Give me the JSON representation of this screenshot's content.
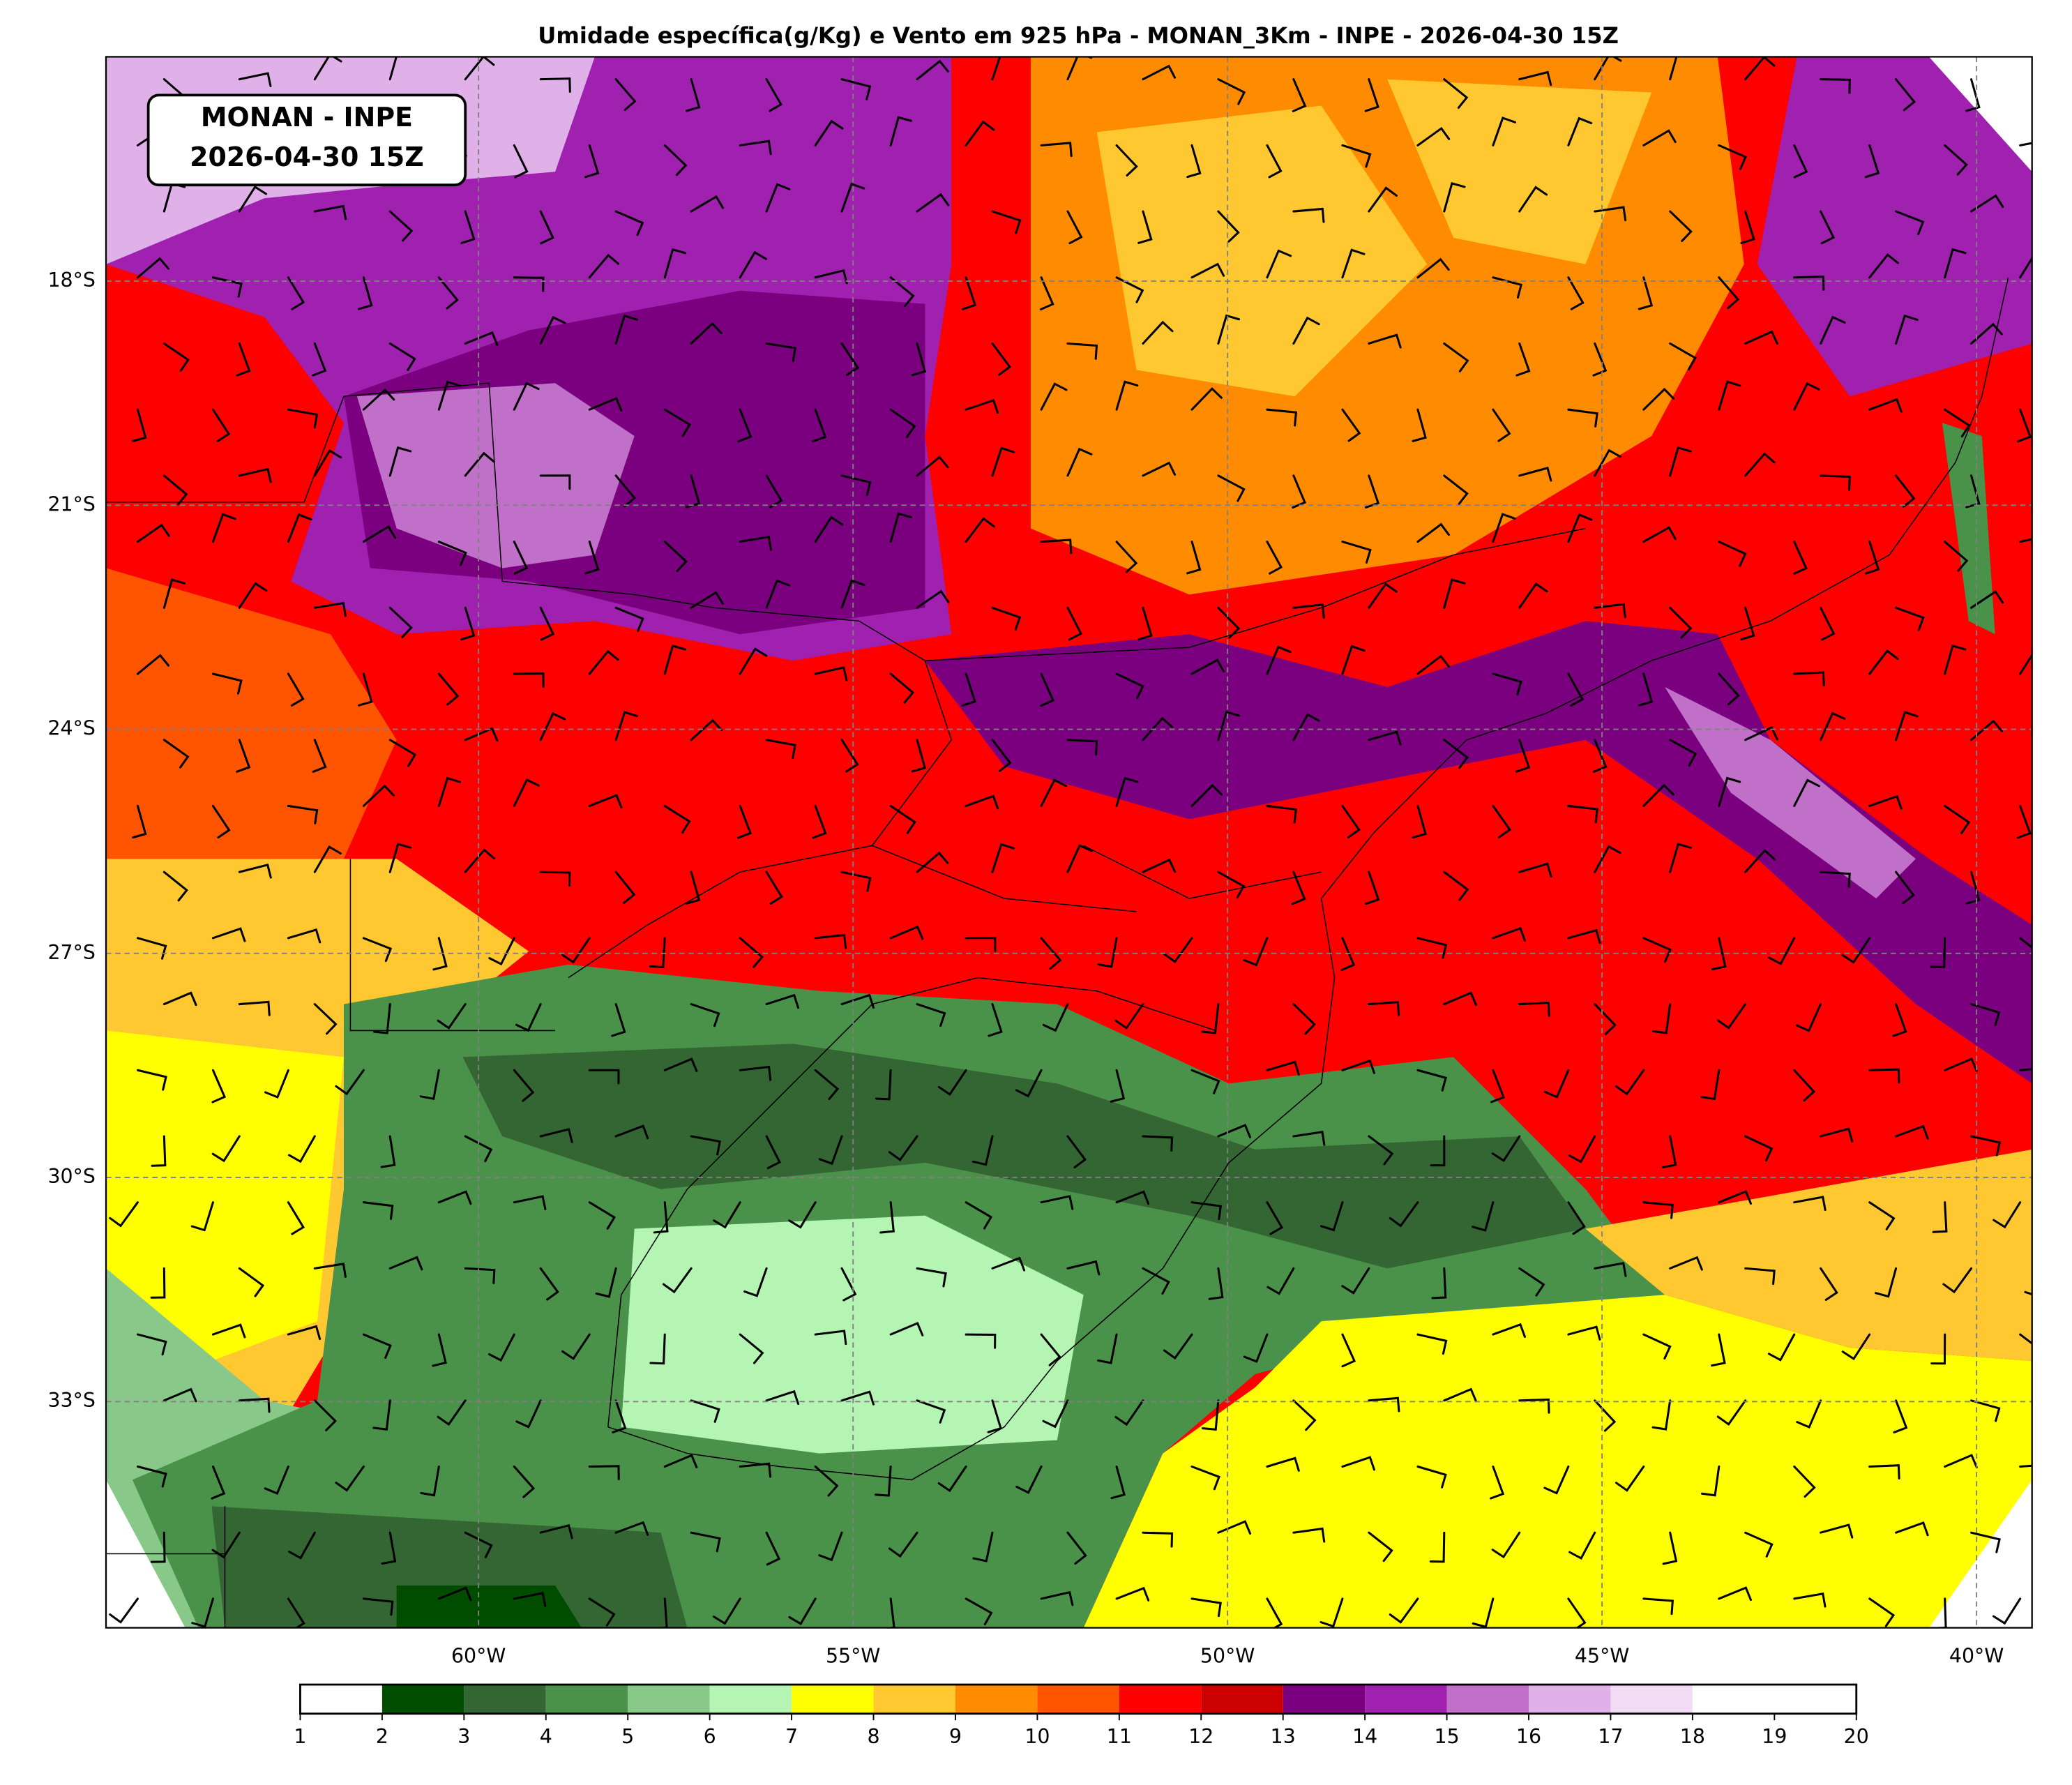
{
  "title": "Umidade específica(g/Kg) e Vento em 925 hPa  - MONAN_3Km - INPE - 2026-04-30 15Z",
  "stamp": [
    "MONAN - INPE",
    "2026-04-30 15Z"
  ],
  "map": {
    "lat_ticks": [
      {
        "value": -18,
        "label": "18°S"
      },
      {
        "value": -21,
        "label": "21°S"
      },
      {
        "value": -24,
        "label": "24°S"
      },
      {
        "value": -27,
        "label": "27°S"
      },
      {
        "value": -30,
        "label": "30°S"
      },
      {
        "value": -33,
        "label": "33°S"
      }
    ],
    "lon_ticks": [
      {
        "value": -60,
        "label": "60°W"
      },
      {
        "value": -55,
        "label": "55°W"
      },
      {
        "value": -50,
        "label": "50°W"
      },
      {
        "value": -45,
        "label": "45°W"
      },
      {
        "value": -40,
        "label": "40°W"
      }
    ]
  },
  "colorbar": {
    "ticks": [
      1,
      2,
      3,
      4,
      5,
      6,
      7,
      8,
      9,
      10,
      11,
      12,
      13,
      14,
      15,
      16,
      17,
      18,
      19,
      20
    ],
    "colors": [
      "#ffffff",
      "#004d00",
      "#336633",
      "#4a914a",
      "#88c888",
      "#b4f5b4",
      "#ffff00",
      "#ffc830",
      "#ff8c00",
      "#ff5500",
      "#ff0000",
      "#cc0000",
      "#7a0080",
      "#a020b0",
      "#c070c8",
      "#e0b0e8",
      "#f2dcf5",
      "#ffffff",
      "#ffffff"
    ]
  }
}
